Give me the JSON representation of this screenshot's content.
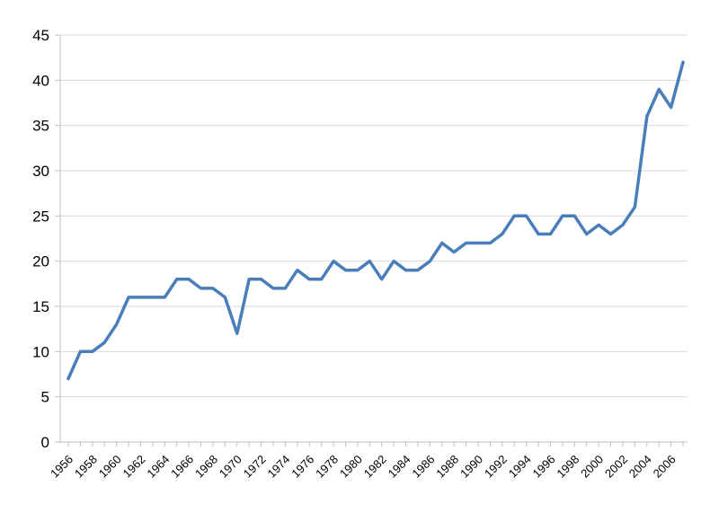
{
  "chart_data": {
    "type": "line",
    "title": "",
    "xlabel": "",
    "ylabel": "",
    "x": [
      1956,
      1957,
      1958,
      1959,
      1960,
      1961,
      1962,
      1963,
      1964,
      1965,
      1966,
      1967,
      1968,
      1969,
      1970,
      1971,
      1972,
      1973,
      1974,
      1975,
      1976,
      1977,
      1978,
      1979,
      1980,
      1981,
      1982,
      1983,
      1984,
      1985,
      1986,
      1987,
      1988,
      1989,
      1990,
      1991,
      1992,
      1993,
      1994,
      1995,
      1996,
      1997,
      1998,
      1999,
      2000,
      2001,
      2002,
      2003,
      2004,
      2005,
      2006,
      2007
    ],
    "series": [
      {
        "values": [
          7,
          10,
          10,
          11,
          13,
          16,
          16,
          16,
          16,
          18,
          18,
          17,
          17,
          16,
          12,
          18,
          18,
          17,
          17,
          19,
          18,
          18,
          20,
          19,
          19,
          20,
          18,
          20,
          19,
          19,
          20,
          22,
          21,
          22,
          22,
          22,
          23,
          25,
          25,
          23,
          23,
          25,
          25,
          23,
          24,
          23,
          24,
          26,
          36,
          39,
          37,
          42
        ]
      }
    ],
    "x_tick_labels": [
      "1956",
      "1958",
      "1960",
      "1962",
      "1964",
      "1966",
      "1968",
      "1970",
      "1972",
      "1974",
      "1976",
      "1978",
      "1980",
      "1982",
      "1984",
      "1986",
      "1988",
      "1990",
      "1992",
      "1994",
      "1996",
      "1998",
      "2000",
      "2002",
      "2004",
      "2006"
    ],
    "y_tick_labels": [
      "0",
      "5",
      "10",
      "15",
      "20",
      "25",
      "30",
      "35",
      "40",
      "45"
    ],
    "ylim": [
      0,
      45
    ],
    "grid": true,
    "legend": "none",
    "colors": {
      "line": "#4a7ebb",
      "grid": "#d9d9d9",
      "axis": "#bfbfbf"
    }
  }
}
